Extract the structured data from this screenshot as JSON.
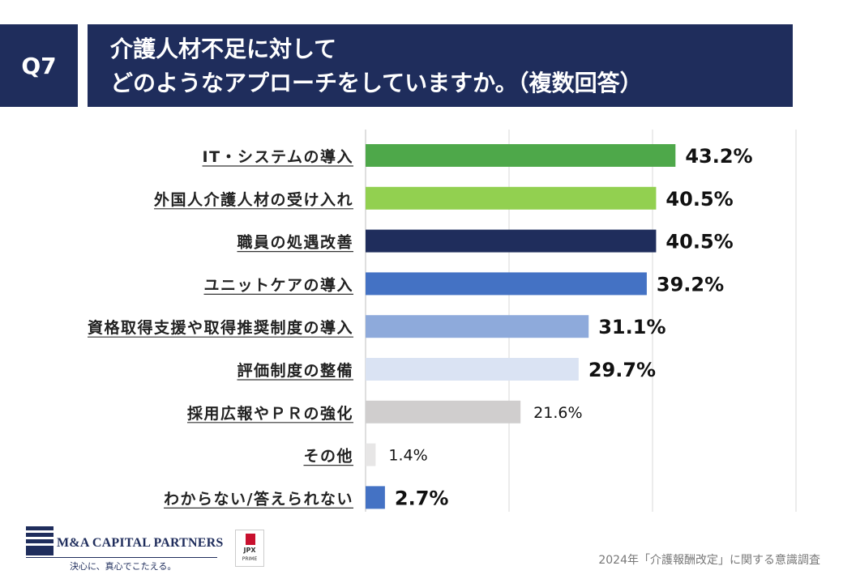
{
  "header": {
    "question_no": "Q7",
    "title_line1": "介護人材不足に対して",
    "title_line2": "どのようなアプローチをしていますか。（複数回答）"
  },
  "chart_data": {
    "type": "bar",
    "orientation": "horizontal",
    "title": "介護人材不足に対して どのようなアプローチをしていますか。（複数回答）",
    "categories": [
      "IT・システムの導入",
      "外国人介護人材の受け入れ",
      "職員の処遇改善",
      "ユニットケアの導入",
      "資格取得支援や取得推奨制度の導入",
      "評価制度の整備",
      "採用広報やＰＲの強化",
      "その他",
      "わからない/答えられない"
    ],
    "values": [
      43.2,
      40.5,
      40.5,
      39.2,
      31.1,
      29.7,
      21.6,
      1.4,
      2.7
    ],
    "value_labels": [
      "43.2%",
      "40.5%",
      "40.5%",
      "39.2%",
      "31.1%",
      "29.7%",
      "21.6%",
      "1.4%",
      "2.7%"
    ],
    "bar_colors": [
      "#4ea84a",
      "#92d050",
      "#1f2d5c",
      "#4472c4",
      "#8eaadb",
      "#dae3f3",
      "#d0cece",
      "#e7e6e6",
      "#4472c4"
    ],
    "xlim": [
      0,
      60
    ],
    "grid": true,
    "xlabel": "",
    "ylabel": ""
  },
  "footer": {
    "company_name": "M&A CAPITAL PARTNERS",
    "company_tagline": "決心に、真心でこたえる。",
    "jpx_text": "JPX",
    "jpx_sub": "PRIME",
    "survey_name": "2024年「介護報酬改定」に関する意識調査"
  }
}
